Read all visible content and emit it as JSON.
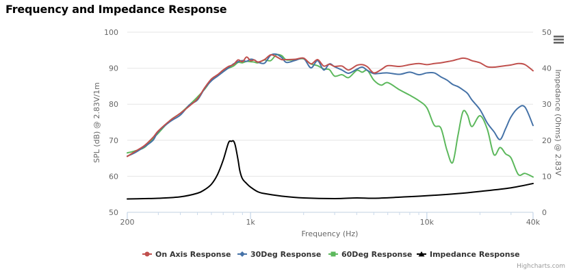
{
  "page": {
    "title": "Frequency and Impedance Response"
  },
  "credits": "Highcharts.com",
  "chart_data": {
    "type": "line",
    "title": "Frequency and Impedance Response",
    "xlabel": "Frequency (Hz)",
    "ylabel": "SPL (dB) @ 2.83V/1m",
    "y2label": "Impedance (Ohms) @ 2.83V",
    "xscale": "log",
    "xlim": [
      200,
      40000
    ],
    "ylim": [
      50,
      100
    ],
    "y2lim": [
      0,
      50
    ],
    "x_ticks": [
      {
        "v": 200,
        "label": "200"
      },
      {
        "v": 1000,
        "label": "1k"
      },
      {
        "v": 10000,
        "label": "10k"
      },
      {
        "v": 40000,
        "label": "40k"
      }
    ],
    "y_ticks": [
      50,
      60,
      70,
      80,
      90,
      100
    ],
    "y2_ticks": [
      0,
      10,
      20,
      30,
      40,
      50
    ],
    "grid": true,
    "legend_position": "bottom-center",
    "series": [
      {
        "name": "On Axis Response",
        "color": "#c0504d",
        "marker": "circle",
        "axis": "left",
        "x": [
          200,
          220,
          250,
          280,
          300,
          350,
          400,
          450,
          500,
          550,
          600,
          650,
          700,
          750,
          800,
          850,
          900,
          950,
          1000,
          1050,
          1100,
          1200,
          1300,
          1400,
          1500,
          1600,
          1800,
          2000,
          2200,
          2400,
          2600,
          2800,
          3000,
          3300,
          3600,
          4000,
          4300,
          4600,
          5000,
          5500,
          6000,
          7000,
          8000,
          9000,
          10000,
          11000,
          12000,
          13000,
          14000,
          15000,
          16000,
          17000,
          18000,
          20000,
          22000,
          24000,
          26000,
          28000,
          30000,
          33000,
          36000,
          40000
        ],
        "y": [
          65.5,
          66.8,
          68.5,
          70.8,
          72.6,
          75.5,
          77.5,
          79.5,
          81.5,
          84.6,
          87,
          88.2,
          89.5,
          90.5,
          91,
          92.3,
          91.8,
          93.1,
          92.1,
          92.3,
          91.7,
          92.4,
          93.7,
          93.2,
          92.4,
          92.4,
          92.5,
          92.8,
          91.2,
          92.4,
          90.6,
          91.1,
          90.5,
          90.6,
          89.5,
          90.8,
          91,
          90.4,
          88.7,
          89.6,
          90.7,
          90.5,
          91,
          91.3,
          91,
          91.3,
          91.5,
          91.8,
          92.1,
          92.5,
          92.8,
          92.6,
          92.1,
          91.5,
          90.4,
          90.3,
          90.5,
          90.7,
          90.9,
          91.3,
          91,
          89.3
        ]
      },
      {
        "name": "30Deg Response",
        "color": "#4572a7",
        "marker": "diamond",
        "axis": "left",
        "x": [
          200,
          220,
          250,
          280,
          300,
          350,
          400,
          450,
          500,
          550,
          600,
          650,
          700,
          750,
          800,
          850,
          900,
          950,
          1000,
          1050,
          1100,
          1200,
          1300,
          1400,
          1500,
          1600,
          1800,
          2000,
          2200,
          2400,
          2600,
          2800,
          3000,
          3300,
          3600,
          4000,
          4300,
          4600,
          5000,
          5500,
          6000,
          7000,
          8000,
          9000,
          10000,
          11000,
          12000,
          13000,
          14000,
          15000,
          16000,
          17000,
          18000,
          20000,
          22000,
          24000,
          26000,
          28000,
          30000,
          33000,
          36000,
          40000
        ],
        "y": [
          65.6,
          66.5,
          68.2,
          70,
          72.4,
          75.2,
          77,
          79.8,
          81.2,
          84.4,
          86.5,
          87.8,
          89,
          90.1,
          91.2,
          91.8,
          92.1,
          91.9,
          92.5,
          92.3,
          91.7,
          91.4,
          93.6,
          93.9,
          93,
          91.6,
          92.2,
          92.7,
          90.1,
          92.1,
          89.5,
          91.2,
          90.4,
          89.5,
          88.6,
          89.7,
          90.3,
          89.4,
          88.5,
          88.6,
          88.7,
          88.3,
          88.9,
          88.2,
          88.7,
          88.7,
          87.6,
          86.7,
          85.5,
          84.9,
          84,
          83,
          81.2,
          78.5,
          74.8,
          72.4,
          70.2,
          73.3,
          76.5,
          79,
          79.2,
          74.1
        ]
      },
      {
        "name": "60Deg Response",
        "color": "#5cb85c",
        "marker": "square",
        "axis": "left",
        "x": [
          200,
          220,
          250,
          280,
          300,
          350,
          400,
          450,
          500,
          550,
          600,
          650,
          700,
          750,
          800,
          850,
          900,
          950,
          1000,
          1050,
          1100,
          1200,
          1300,
          1400,
          1500,
          1600,
          1800,
          2000,
          2200,
          2400,
          2600,
          2800,
          3000,
          3300,
          3600,
          4000,
          4300,
          4600,
          5000,
          5500,
          6000,
          7000,
          8000,
          9000,
          10000,
          11000,
          12000,
          13000,
          14000,
          15000,
          16000,
          17000,
          18000,
          20000,
          22000,
          24000,
          26000,
          28000,
          30000,
          33000,
          36000,
          40000
        ],
        "y": [
          66.5,
          67,
          68,
          70.5,
          72,
          75.5,
          77.5,
          79.8,
          82,
          84.2,
          86.7,
          88,
          89.3,
          90,
          90.6,
          91.6,
          91.5,
          91.9,
          91.8,
          91.7,
          91.5,
          92.3,
          92.1,
          93.7,
          93.5,
          92.3,
          92.4,
          92.6,
          91.2,
          90.7,
          89.8,
          89.6,
          87.8,
          88.2,
          87.4,
          89.4,
          88.9,
          89.4,
          86.7,
          85.3,
          86,
          84,
          82.5,
          81,
          79,
          74.2,
          73.4,
          67.2,
          63.8,
          71.3,
          77.9,
          77,
          73.8,
          76.8,
          73.1,
          66,
          68,
          66.2,
          65.1,
          60.5,
          60.8,
          59.8
        ]
      },
      {
        "name": "Impedance Response",
        "color": "#000000",
        "marker": "triangle",
        "axis": "right",
        "x": [
          200,
          250,
          300,
          400,
          500,
          550,
          600,
          650,
          700,
          750,
          780,
          800,
          820,
          850,
          870,
          900,
          950,
          1000,
          1100,
          1200,
          1500,
          2000,
          3000,
          4000,
          5000,
          7000,
          10000,
          15000,
          20000,
          30000,
          40000
        ],
        "y": [
          3.7,
          3.8,
          3.9,
          4.3,
          5.3,
          6.3,
          7.8,
          10.5,
          14.5,
          19.3,
          19.7,
          19.8,
          18.5,
          14.5,
          11.5,
          9.3,
          8,
          7,
          5.7,
          5.2,
          4.5,
          4,
          3.8,
          4,
          3.9,
          4.2,
          4.6,
          5.2,
          5.8,
          6.8,
          8
        ]
      }
    ]
  }
}
